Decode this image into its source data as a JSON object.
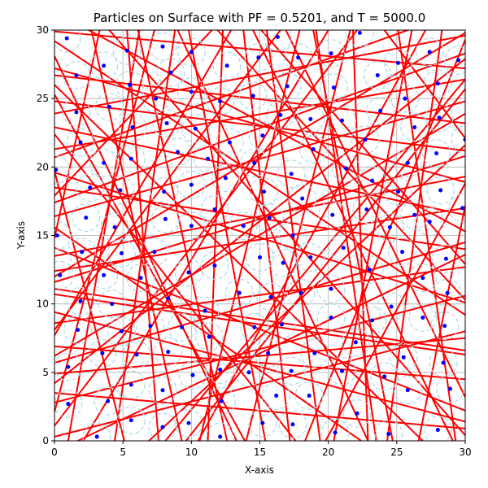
{
  "chart_data": {
    "type": "scatter",
    "title": "Particles on Surface with PF = 0.5201, and T = 5000.0",
    "xlabel": "X-axis",
    "ylabel": "Y-axis",
    "xlim": [
      0,
      30
    ],
    "ylim": [
      0,
      30
    ],
    "xticks": [
      0,
      5,
      10,
      15,
      20,
      25,
      30
    ],
    "yticks": [
      0,
      5,
      10,
      15,
      20,
      25,
      30
    ],
    "grid": true,
    "particle_radius": 0.15,
    "exclusion_radius": 1.0,
    "colors": {
      "particle": "#0000ff",
      "trajectory": "#ff0000",
      "exclusion": "#add8e6"
    },
    "particles": [
      [
        0.9,
        29.4
      ],
      [
        5.3,
        28.5
      ],
      [
        7.9,
        28.8
      ],
      [
        10.0,
        28.4
      ],
      [
        16.3,
        29.5
      ],
      [
        22.3,
        29.8
      ],
      [
        27.4,
        28.4
      ],
      [
        29.5,
        27.8
      ],
      [
        1.6,
        26.7
      ],
      [
        3.6,
        27.4
      ],
      [
        8.5,
        26.9
      ],
      [
        12.6,
        27.4
      ],
      [
        14.9,
        28.0
      ],
      [
        17.8,
        28.0
      ],
      [
        20.2,
        28.3
      ],
      [
        25.1,
        27.6
      ],
      [
        5.5,
        26.0
      ],
      [
        7.4,
        25.0
      ],
      [
        10.0,
        25.5
      ],
      [
        12.1,
        24.8
      ],
      [
        14.5,
        25.2
      ],
      [
        17.0,
        25.9
      ],
      [
        20.4,
        25.8
      ],
      [
        23.6,
        26.7
      ],
      [
        25.6,
        25.0
      ],
      [
        28.0,
        26.1
      ],
      [
        1.6,
        24.0
      ],
      [
        4.0,
        24.4
      ],
      [
        8.2,
        23.2
      ],
      [
        10.3,
        22.8
      ],
      [
        16.5,
        23.8
      ],
      [
        18.7,
        23.5
      ],
      [
        21.0,
        23.4
      ],
      [
        23.8,
        24.1
      ],
      [
        26.3,
        22.9
      ],
      [
        28.1,
        23.6
      ],
      [
        1.9,
        21.8
      ],
      [
        5.7,
        22.9
      ],
      [
        12.8,
        21.8
      ],
      [
        15.2,
        22.3
      ],
      [
        22.7,
        22.0
      ],
      [
        30.0,
        22.0
      ],
      [
        0.1,
        19.8
      ],
      [
        3.6,
        20.3
      ],
      [
        5.6,
        20.6
      ],
      [
        9.0,
        21.1
      ],
      [
        11.2,
        20.6
      ],
      [
        14.6,
        20.3
      ],
      [
        18.9,
        21.3
      ],
      [
        21.3,
        19.9
      ],
      [
        25.8,
        20.3
      ],
      [
        27.9,
        21.0
      ],
      [
        2.6,
        18.5
      ],
      [
        4.8,
        18.3
      ],
      [
        8.0,
        18.2
      ],
      [
        10.0,
        18.7
      ],
      [
        12.5,
        19.2
      ],
      [
        15.3,
        18.2
      ],
      [
        17.3,
        19.5
      ],
      [
        23.2,
        19.0
      ],
      [
        25.1,
        18.2
      ],
      [
        28.2,
        18.3
      ],
      [
        8.1,
        16.2
      ],
      [
        11.7,
        16.9
      ],
      [
        15.7,
        16.3
      ],
      [
        18.1,
        17.7
      ],
      [
        20.3,
        16.5
      ],
      [
        22.8,
        16.9
      ],
      [
        27.4,
        16.0
      ],
      [
        29.8,
        17.0
      ],
      [
        0.2,
        15.0
      ],
      [
        2.3,
        16.3
      ],
      [
        4.4,
        15.6
      ],
      [
        10.0,
        15.7
      ],
      [
        13.8,
        15.7
      ],
      [
        17.4,
        15.0
      ],
      [
        24.5,
        15.6
      ],
      [
        26.3,
        16.5
      ],
      [
        0.4,
        12.1
      ],
      [
        2.0,
        13.8
      ],
      [
        3.6,
        12.1
      ],
      [
        4.9,
        13.7
      ],
      [
        6.3,
        11.9
      ],
      [
        7.3,
        13.8
      ],
      [
        9.8,
        12.3
      ],
      [
        11.7,
        12.8
      ],
      [
        15.0,
        13.4
      ],
      [
        16.7,
        13.0
      ],
      [
        18.7,
        13.4
      ],
      [
        21.1,
        14.1
      ],
      [
        23.0,
        12.5
      ],
      [
        25.4,
        13.8
      ],
      [
        26.9,
        11.9
      ],
      [
        28.6,
        13.3
      ],
      [
        1.9,
        10.2
      ],
      [
        4.2,
        10.0
      ],
      [
        8.3,
        10.4
      ],
      [
        11.0,
        9.5
      ],
      [
        13.5,
        10.8
      ],
      [
        15.8,
        10.5
      ],
      [
        18.0,
        10.8
      ],
      [
        20.2,
        11.1
      ],
      [
        24.6,
        9.8
      ],
      [
        28.7,
        10.8
      ],
      [
        1.7,
        8.1
      ],
      [
        4.9,
        8.0
      ],
      [
        7.0,
        8.4
      ],
      [
        9.3,
        8.3
      ],
      [
        11.3,
        7.6
      ],
      [
        14.6,
        8.3
      ],
      [
        16.6,
        8.5
      ],
      [
        20.2,
        9.0
      ],
      [
        23.2,
        8.8
      ],
      [
        26.9,
        9.0
      ],
      [
        28.5,
        8.4
      ],
      [
        1.0,
        5.4
      ],
      [
        3.5,
        6.4
      ],
      [
        6.0,
        6.3
      ],
      [
        8.3,
        6.5
      ],
      [
        10.1,
        4.8
      ],
      [
        12.1,
        5.2
      ],
      [
        14.2,
        5.0
      ],
      [
        15.6,
        6.4
      ],
      [
        17.3,
        5.1
      ],
      [
        19.0,
        6.4
      ],
      [
        21.0,
        5.1
      ],
      [
        22.0,
        7.2
      ],
      [
        24.1,
        4.7
      ],
      [
        25.5,
        6.1
      ],
      [
        28.4,
        5.7
      ],
      [
        5.6,
        4.1
      ],
      [
        7.9,
        3.7
      ],
      [
        12.2,
        2.9
      ],
      [
        16.2,
        3.3
      ],
      [
        18.6,
        3.3
      ],
      [
        25.8,
        3.7
      ],
      [
        28.9,
        3.8
      ],
      [
        1.0,
        2.7
      ],
      [
        3.1,
        0.3
      ],
      [
        3.9,
        2.9
      ],
      [
        5.6,
        1.5
      ],
      [
        7.9,
        1.0
      ],
      [
        9.8,
        1.3
      ],
      [
        12.1,
        0.3
      ],
      [
        15.2,
        1.3
      ],
      [
        17.4,
        1.2
      ],
      [
        20.5,
        0.6
      ],
      [
        22.1,
        2.0
      ],
      [
        24.4,
        0.5
      ],
      [
        28.0,
        0.8
      ]
    ],
    "trajectories": [
      [
        [
          0,
          29.9
        ],
        [
          30,
          27.2
        ]
      ],
      [
        [
          0,
          26.7
        ],
        [
          30,
          23.2
        ]
      ],
      [
        [
          0,
          23.9
        ],
        [
          30,
          29.6
        ]
      ],
      [
        [
          0,
          21.3
        ],
        [
          30,
          26.4
        ]
      ],
      [
        [
          0,
          18.5
        ],
        [
          30,
          14.0
        ]
      ],
      [
        [
          0,
          16.4
        ],
        [
          30,
          24.8
        ]
      ],
      [
        [
          0,
          13.5
        ],
        [
          30,
          19.3
        ]
      ],
      [
        [
          0,
          11.6
        ],
        [
          30,
          20.8
        ]
      ],
      [
        [
          0,
          8.6
        ],
        [
          30,
          12.7
        ]
      ],
      [
        [
          0,
          6.9
        ],
        [
          30,
          4.5
        ]
      ],
      [
        [
          0,
          4.9
        ],
        [
          30,
          7.5
        ]
      ],
      [
        [
          0,
          2.8
        ],
        [
          30,
          10.6
        ]
      ],
      [
        [
          0,
          0.3
        ],
        [
          30,
          8.0
        ]
      ],
      [
        [
          0,
          9.4
        ],
        [
          30,
          1.4
        ]
      ],
      [
        [
          0,
          14.1
        ],
        [
          30,
          2.2
        ]
      ],
      [
        [
          0,
          22.9
        ],
        [
          30,
          16.5
        ]
      ],
      [
        [
          0,
          27.2
        ],
        [
          30,
          18.9
        ]
      ],
      [
        [
          0,
          19.6
        ],
        [
          30,
          10.1
        ]
      ],
      [
        [
          0,
          12.4
        ],
        [
          30,
          17.0
        ]
      ],
      [
        [
          0,
          5.7
        ],
        [
          30,
          14.5
        ]
      ],
      [
        [
          0,
          24.8
        ],
        [
          30,
          21.2
        ]
      ],
      [
        [
          0,
          10.7
        ],
        [
          30,
          6.3
        ]
      ],
      [
        [
          0,
          17.4
        ],
        [
          30,
          28.3
        ]
      ],
      [
        [
          0,
          3.5
        ],
        [
          30,
          0.9
        ]
      ],
      [
        [
          1.0,
          0
        ],
        [
          6.2,
          30
        ]
      ],
      [
        [
          2.7,
          30
        ],
        [
          9.3,
          0
        ]
      ],
      [
        [
          4.4,
          0
        ],
        [
          8.8,
          30
        ]
      ],
      [
        [
          6.1,
          30
        ],
        [
          12.6,
          0
        ]
      ],
      [
        [
          7.6,
          0
        ],
        [
          5.3,
          30
        ]
      ],
      [
        [
          9.8,
          30
        ],
        [
          15.4,
          0
        ]
      ],
      [
        [
          10.6,
          0
        ],
        [
          17.9,
          30
        ]
      ],
      [
        [
          12.3,
          30
        ],
        [
          11.2,
          0
        ]
      ],
      [
        [
          14.0,
          0
        ],
        [
          21.6,
          30
        ]
      ],
      [
        [
          15.5,
          30
        ],
        [
          19.4,
          0
        ]
      ],
      [
        [
          17.2,
          0
        ],
        [
          13.8,
          30
        ]
      ],
      [
        [
          18.9,
          30
        ],
        [
          24.7,
          0
        ]
      ],
      [
        [
          20.4,
          0
        ],
        [
          26.1,
          30
        ]
      ],
      [
        [
          21.8,
          30
        ],
        [
          22.9,
          0
        ]
      ],
      [
        [
          23.5,
          0
        ],
        [
          19.1,
          30
        ]
      ],
      [
        [
          25.1,
          30
        ],
        [
          29.3,
          0
        ]
      ],
      [
        [
          26.6,
          0
        ],
        [
          30,
          17.2
        ]
      ],
      [
        [
          28.3,
          30
        ],
        [
          24.3,
          0
        ]
      ],
      [
        [
          0,
          28.1
        ],
        [
          13.3,
          0
        ]
      ],
      [
        [
          3.3,
          30
        ],
        [
          0,
          14.8
        ]
      ],
      [
        [
          0,
          8.1
        ],
        [
          16.5,
          30
        ]
      ],
      [
        [
          5.1,
          0
        ],
        [
          0,
          19.7
        ]
      ],
      [
        [
          16.9,
          30
        ],
        [
          30,
          3.2
        ]
      ],
      [
        [
          30,
          25.7
        ],
        [
          9.6,
          0
        ]
      ],
      [
        [
          11.9,
          30
        ],
        [
          30,
          10.3
        ]
      ],
      [
        [
          30,
          29.3
        ],
        [
          18.3,
          0
        ]
      ],
      [
        [
          0,
          15.6
        ],
        [
          22.4,
          0
        ]
      ],
      [
        [
          24.1,
          30
        ],
        [
          30,
          22.1
        ]
      ],
      [
        [
          0,
          2.1
        ],
        [
          7.3,
          30
        ]
      ],
      [
        [
          13.9,
          0
        ],
        [
          0,
          25.3
        ]
      ],
      [
        [
          20.0,
          30
        ],
        [
          2.1,
          0
        ]
      ],
      [
        [
          30,
          12.9
        ],
        [
          15.1,
          30
        ]
      ],
      [
        [
          0,
          20.7
        ],
        [
          25.8,
          30
        ]
      ],
      [
        [
          8.1,
          0
        ],
        [
          30,
          26.4
        ]
      ],
      [
        [
          30,
          6.6
        ],
        [
          0,
          11.1
        ]
      ],
      [
        [
          19.8,
          0
        ],
        [
          30,
          18.8
        ]
      ],
      [
        [
          0,
          6.2
        ],
        [
          30,
          23.9
        ]
      ],
      [
        [
          4.0,
          30
        ],
        [
          30,
          0.4
        ]
      ],
      [
        [
          27.1,
          30
        ],
        [
          10.5,
          0
        ]
      ],
      [
        [
          0,
          1.1
        ],
        [
          22.1,
          30
        ]
      ],
      [
        [
          0,
          29.2
        ],
        [
          30,
          9.2
        ]
      ],
      [
        [
          14.5,
          30
        ],
        [
          29.1,
          0
        ]
      ],
      [
        [
          0,
          17.9
        ],
        [
          11.5,
          30
        ]
      ],
      [
        [
          6.9,
          0
        ],
        [
          30,
          21.6
        ]
      ],
      [
        [
          30,
          27.9
        ],
        [
          0,
          4.2
        ]
      ],
      [
        [
          22.9,
          0
        ],
        [
          9.0,
          30
        ]
      ],
      [
        [
          0,
          12.0
        ],
        [
          30,
          29.8
        ]
      ],
      [
        [
          17.6,
          0
        ],
        [
          0,
          22.4
        ]
      ],
      [
        [
          30,
          15.3
        ],
        [
          2.5,
          30
        ]
      ],
      [
        [
          1.7,
          0
        ],
        [
          30,
          13.6
        ]
      ],
      [
        [
          0,
          26.0
        ],
        [
          26.9,
          0
        ]
      ],
      [
        [
          12.9,
          30
        ],
        [
          0,
          7.7
        ]
      ]
    ]
  }
}
